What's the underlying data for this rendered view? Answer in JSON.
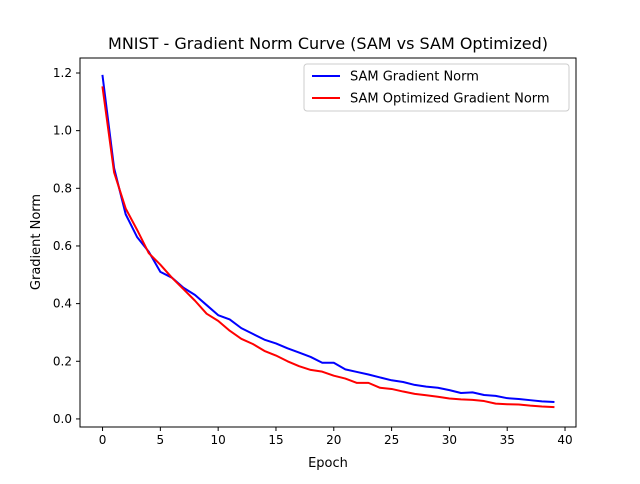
{
  "chart_data": {
    "type": "line",
    "title": "MNIST - Gradient Norm Curve (SAM vs SAM Optimized)",
    "xlabel": "Epoch",
    "ylabel": "Gradient Norm",
    "xlim": [
      -1.95,
      40.95
    ],
    "ylim": [
      -0.028,
      1.252
    ],
    "xticks": [
      0,
      5,
      10,
      15,
      20,
      25,
      30,
      35,
      40
    ],
    "yticks": [
      0.0,
      0.2,
      0.4,
      0.6,
      0.8,
      1.0,
      1.2
    ],
    "xtick_labels": [
      "0",
      "5",
      "10",
      "15",
      "20",
      "25",
      "30",
      "35",
      "40"
    ],
    "ytick_labels": [
      "0.0",
      "0.2",
      "0.4",
      "0.6",
      "0.8",
      "1.0",
      "1.2"
    ],
    "grid": false,
    "legend_position": "top-right",
    "x": [
      0,
      1,
      2,
      3,
      4,
      5,
      6,
      7,
      8,
      9,
      10,
      11,
      12,
      13,
      14,
      15,
      16,
      17,
      18,
      19,
      20,
      21,
      22,
      23,
      24,
      25,
      26,
      27,
      28,
      29,
      30,
      31,
      32,
      33,
      34,
      35,
      36,
      37,
      38,
      39
    ],
    "series": [
      {
        "name": "SAM Gradient Norm",
        "color": "#0000ff",
        "values": [
          1.19,
          0.87,
          0.71,
          0.63,
          0.58,
          0.51,
          0.49,
          0.455,
          0.43,
          0.395,
          0.36,
          0.345,
          0.315,
          0.295,
          0.275,
          0.262,
          0.245,
          0.23,
          0.215,
          0.195,
          0.195,
          0.172,
          0.163,
          0.154,
          0.144,
          0.134,
          0.128,
          0.118,
          0.112,
          0.108,
          0.1,
          0.09,
          0.092,
          0.083,
          0.08,
          0.072,
          0.069,
          0.065,
          0.061,
          0.059
        ]
      },
      {
        "name": "SAM Optimized Gradient Norm",
        "color": "#ff0000",
        "values": [
          1.15,
          0.855,
          0.73,
          0.655,
          0.575,
          0.535,
          0.49,
          0.45,
          0.41,
          0.365,
          0.34,
          0.306,
          0.278,
          0.26,
          0.236,
          0.22,
          0.2,
          0.183,
          0.17,
          0.164,
          0.15,
          0.14,
          0.125,
          0.125,
          0.108,
          0.104,
          0.095,
          0.087,
          0.082,
          0.077,
          0.071,
          0.068,
          0.066,
          0.062,
          0.053,
          0.051,
          0.05,
          0.046,
          0.043,
          0.041
        ]
      }
    ]
  }
}
